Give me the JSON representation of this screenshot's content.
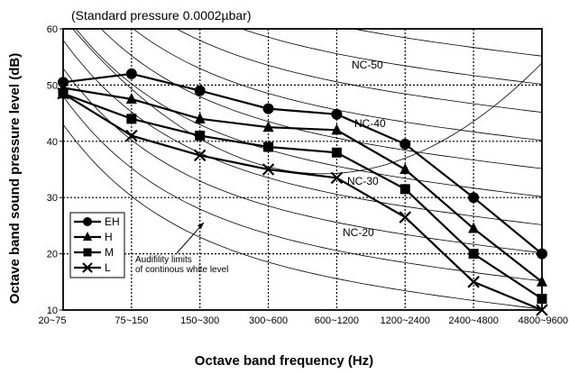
{
  "chart_data": {
    "type": "line",
    "title": "(Standard pressure  0.0002µbar)",
    "xlabel": "Octave band frequency (Hz)",
    "ylabel": "Octave band sound pressure level (dB)",
    "categories": [
      "20~75",
      "75~150",
      "150~300",
      "300~600",
      "600~1200",
      "1200~2400",
      "2400~4800",
      "4800~9600"
    ],
    "ylim": [
      10,
      60
    ],
    "yticks": [
      "10",
      "20",
      "30",
      "40",
      "50",
      "60"
    ],
    "grid": true,
    "legend_position": "bottom-left",
    "series": [
      {
        "name": "EH",
        "marker": "circle",
        "values": [
          50.5,
          52,
          49,
          45.8,
          44.8,
          39.5,
          30,
          20
        ]
      },
      {
        "name": "H",
        "marker": "triangle",
        "values": [
          49.5,
          47.5,
          44,
          42.5,
          42,
          35,
          24.5,
          15
        ]
      },
      {
        "name": "M",
        "marker": "square",
        "values": [
          48.5,
          44,
          41,
          39,
          38,
          31.5,
          20,
          12
        ]
      },
      {
        "name": "L",
        "marker": "cross",
        "values": [
          48.5,
          41,
          37.5,
          35,
          33.5,
          26.5,
          15,
          10
        ]
      }
    ],
    "nc_curves": [
      {
        "name": "NC-50"
      },
      {
        "name": "NC-40"
      },
      {
        "name": "NC-30"
      },
      {
        "name": "NC-20"
      }
    ],
    "annotation": "Audifility limits\nof continous white level"
  }
}
